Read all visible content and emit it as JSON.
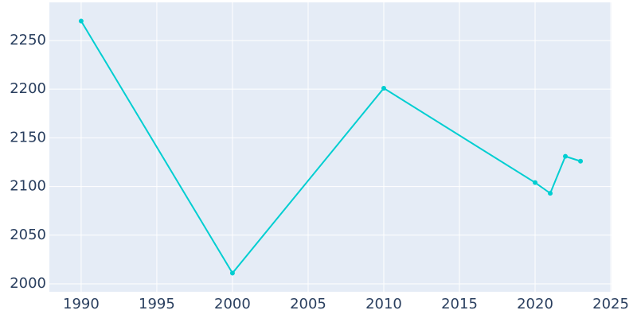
{
  "chart_data": {
    "type": "line",
    "x": [
      1990,
      2000,
      2010,
      2020,
      2021,
      2022,
      2023
    ],
    "series": [
      {
        "color": "#00ced1",
        "values": [
          2270,
          2011,
          2201,
          2104,
          2093,
          2131,
          2126
        ]
      }
    ],
    "xlim": [
      1987.9,
      2025.05
    ],
    "xticks": [
      1990,
      1995,
      2000,
      2005,
      2010,
      2015,
      2020,
      2025
    ],
    "ylim": [
      1991.8,
      2289.2
    ],
    "yticks": [
      2000,
      2050,
      2100,
      2150,
      2200,
      2250
    ],
    "grid": true
  }
}
